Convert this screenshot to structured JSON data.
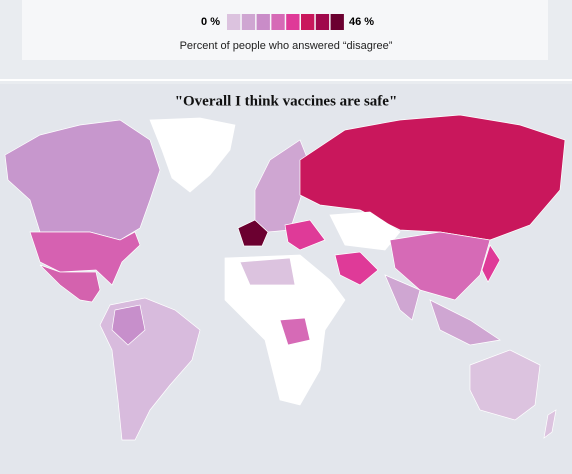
{
  "legend": {
    "min_label": "0 %",
    "max_label": "46 %",
    "caption": "Percent of people who answered “disagree”",
    "colors": [
      "#dcc3df",
      "#cfa6d2",
      "#c98cc8",
      "#d66ab6",
      "#df3a98",
      "#c9175c",
      "#a0084c",
      "#6b0030"
    ]
  },
  "map": {
    "title": "\"Overall I think vaccines are safe\""
  }
}
